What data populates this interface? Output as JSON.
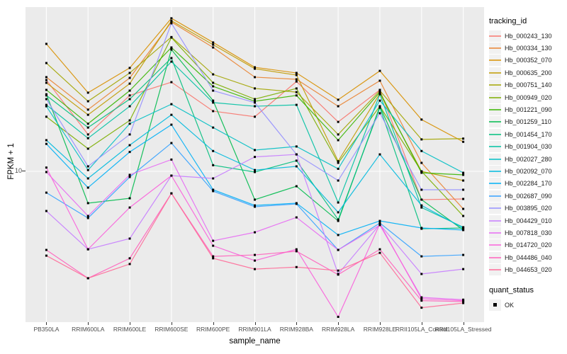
{
  "figure": {
    "x_title": "sample_name",
    "y_title": "FPKM + 1",
    "y_tick_label": "10",
    "legend_tracking_title": "tracking_id",
    "legend_quant_title": "quant_status",
    "legend_quant_ok_label": "OK",
    "colors": {
      "panel_bg": "#EBEBEB",
      "grid": "#FFFFFF",
      "tick_text": "#4D4D4D",
      "marker": "#000000",
      "legend_key_bg": "#F1F1F1"
    }
  },
  "chart_data": {
    "type": "line",
    "title": "",
    "xlabel": "sample_name",
    "ylabel": "FPKM + 1",
    "y_scale": "log10",
    "y_tick_values": [
      10
    ],
    "ylim_fpkm_plus1": [
      1.0,
      115
    ],
    "grid": "major-white-on-gray",
    "legend_position": "right",
    "point_shape": "filled-black-square",
    "quant_status": "OK",
    "categories": [
      "PB350LA",
      "RRIM600LA",
      "RRIM600LE",
      "RRIM600SE",
      "RRIM600PE",
      "RRIM901LA",
      "RRIM928BA",
      "RRIM928LA",
      "RRIM928LE",
      "RRII105LA_Control",
      "RRII105LA_Stressed"
    ],
    "series": [
      {
        "name": "Hb_000243_130",
        "color": "#F8766D",
        "values": [
          41.1,
          17.7,
          32.4,
          39.8,
          25.4,
          23.3,
          40.2,
          21.5,
          35.3,
          6.45,
          6.52
        ]
      },
      {
        "name": "Hb_000334_130",
        "color": "#EA8331",
        "values": [
          43.0,
          26.0,
          42.5,
          101,
          68.1,
          43.0,
          41.6,
          27.4,
          40.7,
          11.4,
          5.59
        ]
      },
      {
        "name": "Hb_000352_070",
        "color": "#D89000",
        "values": [
          72.0,
          33.8,
          49.6,
          107,
          73.6,
          50.1,
          45.9,
          30.3,
          47.4,
          22.3,
          15.8
        ]
      },
      {
        "name": "Hb_000635_200",
        "color": "#C09B00",
        "values": [
          39.4,
          24.0,
          38.9,
          103,
          71.1,
          49.0,
          44.4,
          11.7,
          33.4,
          10.0,
          8.67
        ]
      },
      {
        "name": "Hb_000751_140",
        "color": "#A3A500",
        "values": [
          53.5,
          29.6,
          45.9,
          80.0,
          44.9,
          36.1,
          34.1,
          17.7,
          34.9,
          16.4,
          16.6
        ]
      },
      {
        "name": "Hb_000949_020",
        "color": "#7CAE00",
        "values": [
          23.3,
          14.2,
          22.0,
          79.4,
          39.4,
          30.6,
          36.1,
          11.4,
          27.4,
          10.0,
          5.01
        ]
      },
      {
        "name": "Hb_001221_090",
        "color": "#39B600",
        "values": [
          35.3,
          20.9,
          34.9,
          68.1,
          37.3,
          29.6,
          32.4,
          16.2,
          34.1,
          9.78,
          9.47
        ]
      },
      {
        "name": "Hb_001259_110",
        "color": "#00BB4E",
        "values": [
          33.0,
          6.11,
          6.59,
          65.9,
          29.9,
          6.45,
          7.94,
          4.64,
          27.4,
          6.45,
          4.03
        ]
      },
      {
        "name": "Hb_001454_170",
        "color": "#00BF7D",
        "values": [
          32.4,
          19.7,
          30.6,
          57.8,
          11.0,
          9.89,
          11.8,
          4.74,
          26.8,
          4.11,
          4.16
        ]
      },
      {
        "name": "Hb_001904_030",
        "color": "#00C1A3",
        "values": [
          28.0,
          16.7,
          27.4,
          54.7,
          29.0,
          27.4,
          28.0,
          6.17,
          33.0,
          5.71,
          4.21
        ]
      },
      {
        "name": "Hb_002027_280",
        "color": "#00BFC4",
        "values": [
          27.4,
          10.2,
          20.9,
          28.3,
          19.7,
          13.9,
          14.7,
          10.4,
          29.9,
          13.7,
          9.78
        ]
      },
      {
        "name": "Hb_002092_070",
        "color": "#00BADE",
        "values": [
          16.2,
          8.96,
          15.0,
          24.0,
          13.7,
          10.2,
          10.8,
          5.3,
          13.0,
          5.9,
          4.16
        ]
      },
      {
        "name": "Hb_002284_170",
        "color": "#00B0F6",
        "values": [
          15.3,
          7.77,
          13.5,
          20.6,
          7.52,
          5.9,
          6.11,
          3.73,
          4.64,
          4.16,
          4.03
        ]
      },
      {
        "name": "Hb_002687_090",
        "color": "#35A2FF",
        "values": [
          7.19,
          4.85,
          9.16,
          15.5,
          7.36,
          5.78,
          6.04,
          2.96,
          4.49,
          2.68,
          2.74
        ]
      },
      {
        "name": "Hb_003895_020",
        "color": "#9590FF",
        "values": [
          30.6,
          10.8,
          17.7,
          99.0,
          34.9,
          29.0,
          13.0,
          8.67,
          24.6,
          7.52,
          7.52
        ]
      },
      {
        "name": "Hb_004429_010",
        "color": "#C77CFF",
        "values": [
          5.41,
          2.99,
          3.53,
          9.36,
          8.96,
          12.5,
          13.0,
          2.04,
          4.4,
          2.04,
          2.2
        ]
      },
      {
        "name": "Hb_007818_030",
        "color": "#E76BF3",
        "values": [
          9.89,
          5.01,
          9.47,
          12.0,
          3.41,
          3.89,
          4.9,
          2.96,
          4.35,
          1.42,
          1.37
        ]
      },
      {
        "name": "Hb_014720_020",
        "color": "#FA62DB",
        "values": [
          10.6,
          2.99,
          5.71,
          9.36,
          3.16,
          2.51,
          2.99,
          1.05,
          4.44,
          1.39,
          1.35
        ]
      },
      {
        "name": "Hb_044486_040",
        "color": "#FF62BC",
        "values": [
          2.96,
          1.91,
          2.6,
          7.11,
          2.68,
          2.74,
          2.9,
          2.02,
          2.99,
          1.35,
          1.33
        ]
      },
      {
        "name": "Hb_044653_020",
        "color": "#FF6A98",
        "values": [
          2.71,
          1.91,
          2.38,
          7.11,
          2.6,
          2.2,
          2.27,
          2.15,
          2.83,
          1.21,
          1.3
        ]
      }
    ]
  }
}
